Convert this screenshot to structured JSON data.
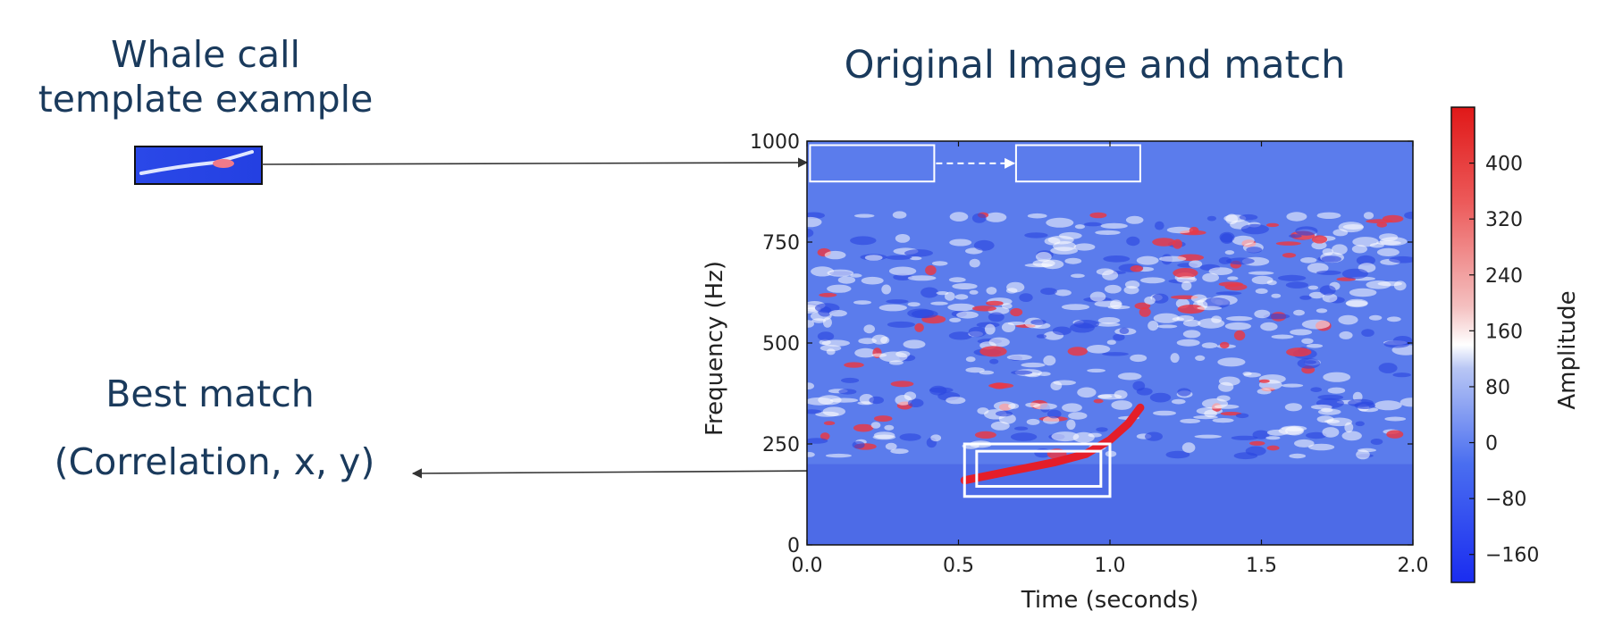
{
  "template_caption": {
    "line1": "Whale call",
    "line2": "template example"
  },
  "main_title": "Original Image and match",
  "best_match": {
    "title": "Best match",
    "fields": "(Correlation, x, y)"
  },
  "colors": {
    "caption_text": "#1a3a5c",
    "spectrogram_low": "#2b49e8",
    "spectrogram_mid": "#ffffff",
    "spectrogram_high": "#e0202a",
    "box_outline": "#ffffff",
    "arrow": "#333333"
  },
  "chart_data": {
    "type": "heatmap",
    "title": "",
    "xlabel": "Time (seconds)",
    "ylabel": "Frequency (Hz)",
    "xlim": [
      0.0,
      2.0
    ],
    "ylim": [
      0,
      1000
    ],
    "xticks": [
      "0.0",
      "0.5",
      "1.0",
      "1.5",
      "2.0"
    ],
    "yticks": [
      "0",
      "250",
      "500",
      "750",
      "1000"
    ],
    "colorbar": {
      "label": "Amplitude",
      "range": [
        -200,
        480
      ],
      "ticks": [
        "−160",
        "−80",
        "0",
        "80",
        "160",
        "240",
        "320",
        "400"
      ],
      "tick_values": [
        -160,
        -80,
        0,
        80,
        160,
        240,
        320,
        400
      ]
    },
    "whale_call_points": [
      {
        "t": 0.52,
        "f": 160
      },
      {
        "t": 0.62,
        "f": 175
      },
      {
        "t": 0.72,
        "f": 190
      },
      {
        "t": 0.82,
        "f": 205
      },
      {
        "t": 0.92,
        "f": 225
      },
      {
        "t": 1.0,
        "f": 260
      },
      {
        "t": 1.06,
        "f": 300
      },
      {
        "t": 1.1,
        "f": 340
      }
    ],
    "sliding_windows": [
      {
        "t0": 0.01,
        "t1": 0.42,
        "f0": 900,
        "f1": 990
      },
      {
        "t0": 0.69,
        "t1": 1.1,
        "f0": 900,
        "f1": 990
      }
    ],
    "match_boxes": [
      {
        "t0": 0.52,
        "t1": 1.0,
        "f0": 120,
        "f1": 250
      },
      {
        "t0": 0.56,
        "t1": 0.97,
        "f0": 145,
        "f1": 232
      }
    ],
    "grid": false
  }
}
